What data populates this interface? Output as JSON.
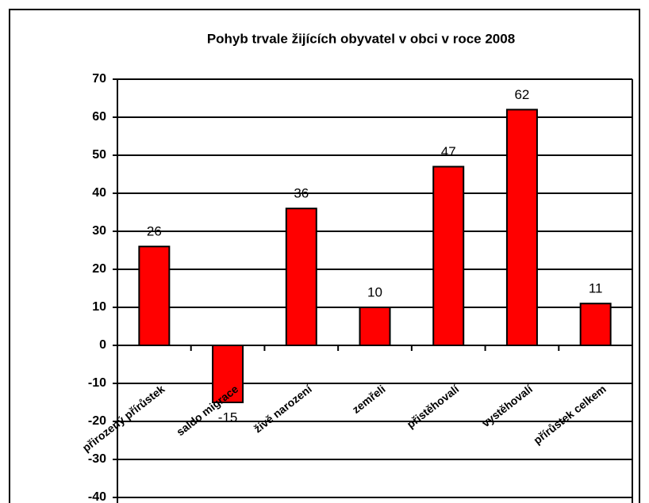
{
  "chart_data": {
    "type": "bar",
    "title": "Pohyb trvale žijících obyvatel v obci v roce 2008",
    "categories": [
      "přirozený přírůstek",
      "saldo migrace",
      "živě narození",
      "zemřeli",
      "přistěhovalí",
      "vystěhovalí",
      "přírůstek celkem"
    ],
    "values": [
      26,
      -15,
      36,
      10,
      47,
      62,
      11
    ],
    "color": "#ff0000",
    "ylim": [
      -40,
      70
    ],
    "yticks": [
      -40,
      -30,
      -20,
      -10,
      0,
      10,
      20,
      30,
      40,
      50,
      60,
      70
    ],
    "grid": true
  }
}
